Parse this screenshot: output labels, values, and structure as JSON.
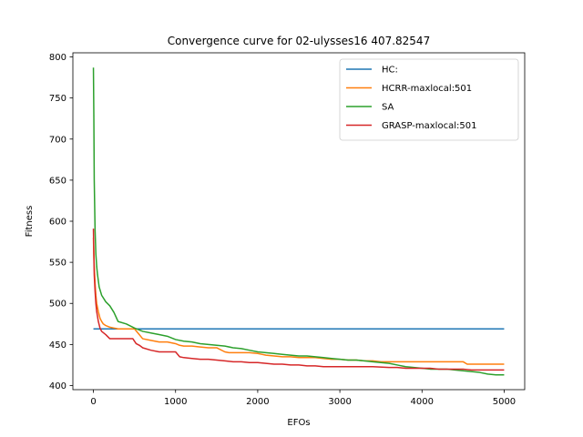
{
  "chart_data": {
    "type": "line",
    "title": "Convergence curve for 02-ulysses16 407.82547",
    "xlabel": "EFOs",
    "ylabel": "Fitness",
    "xlim": [
      -250,
      5250
    ],
    "ylim": [
      395,
      805
    ],
    "xticks": [
      0,
      1000,
      2000,
      3000,
      4000,
      5000
    ],
    "yticks": [
      400,
      450,
      500,
      550,
      600,
      650,
      700,
      750,
      800
    ],
    "grid": false,
    "legend_position": "top-right",
    "series": [
      {
        "name": "HC:",
        "color": "#1f77b4",
        "x": [
          0,
          5000
        ],
        "y": [
          469,
          469
        ]
      },
      {
        "name": "HCRR-maxlocal:501",
        "color": "#ff7f0e",
        "x": [
          0,
          5,
          10,
          20,
          30,
          40,
          60,
          80,
          100,
          120,
          150,
          200,
          250,
          300,
          400,
          500,
          550,
          600,
          700,
          800,
          900,
          1000,
          1050,
          1100,
          1200,
          1300,
          1400,
          1500,
          1600,
          1650,
          1700,
          1800,
          1900,
          2000,
          2050,
          2100,
          2200,
          2300,
          2400,
          2500,
          2600,
          2700,
          2800,
          2900,
          3000,
          3100,
          3200,
          3300,
          3400,
          3500,
          3600,
          3700,
          3800,
          3900,
          4000,
          4100,
          4200,
          4300,
          4400,
          4500,
          4550,
          4600,
          4700,
          4800,
          4900,
          5000
        ],
        "y": [
          580,
          560,
          545,
          525,
          510,
          500,
          490,
          482,
          478,
          475,
          473,
          471,
          470,
          469,
          469,
          469,
          463,
          457,
          455,
          453,
          453,
          451,
          449,
          448,
          448,
          447,
          446,
          446,
          441,
          440,
          440,
          440,
          440,
          439,
          438,
          437,
          436,
          435,
          435,
          434,
          434,
          434,
          433,
          432,
          432,
          431,
          431,
          430,
          430,
          429,
          429,
          429,
          429,
          429,
          429,
          429,
          429,
          429,
          429,
          429,
          426,
          426,
          426,
          426,
          426,
          426
        ]
      },
      {
        "name": "SA",
        "color": "#2ca02c",
        "x": [
          0,
          5,
          10,
          20,
          30,
          40,
          50,
          70,
          100,
          150,
          200,
          250,
          300,
          400,
          500,
          600,
          700,
          800,
          900,
          1000,
          1100,
          1200,
          1300,
          1400,
          1500,
          1600,
          1700,
          1800,
          1900,
          2000,
          2100,
          2200,
          2300,
          2400,
          2500,
          2600,
          2700,
          2800,
          2900,
          3000,
          3100,
          3200,
          3300,
          3400,
          3500,
          3600,
          3700,
          3800,
          3900,
          4000,
          4100,
          4200,
          4300,
          4400,
          4500,
          4600,
          4700,
          4800,
          4900,
          5000
        ],
        "y": [
          787,
          730,
          650,
          590,
          560,
          545,
          535,
          520,
          510,
          502,
          497,
          489,
          478,
          475,
          470,
          466,
          464,
          462,
          460,
          456,
          454,
          453,
          451,
          450,
          449,
          448,
          446,
          445,
          443,
          441,
          440,
          439,
          438,
          437,
          436,
          436,
          435,
          434,
          433,
          432,
          431,
          431,
          430,
          429,
          428,
          427,
          425,
          423,
          422,
          421,
          420,
          420,
          420,
          419,
          418,
          417,
          416,
          414,
          413,
          413
        ]
      },
      {
        "name": "GRASP-maxlocal:501",
        "color": "#d62728",
        "x": [
          0,
          5,
          10,
          20,
          30,
          40,
          60,
          80,
          100,
          150,
          200,
          300,
          400,
          480,
          520,
          560,
          600,
          700,
          800,
          900,
          1000,
          1050,
          1100,
          1200,
          1300,
          1400,
          1500,
          1600,
          1700,
          1800,
          1900,
          2000,
          2100,
          2200,
          2300,
          2400,
          2500,
          2600,
          2700,
          2800,
          2900,
          3000,
          3200,
          3400,
          3600,
          3700,
          3800,
          3900,
          4000,
          4100,
          4200,
          4300,
          4400,
          4500,
          4600,
          4700,
          4800,
          4900,
          5000
        ],
        "y": [
          591,
          560,
          535,
          515,
          500,
          490,
          478,
          470,
          466,
          462,
          457,
          457,
          457,
          457,
          451,
          449,
          446,
          443,
          441,
          441,
          441,
          435,
          434,
          433,
          432,
          432,
          431,
          430,
          429,
          429,
          428,
          428,
          427,
          426,
          426,
          425,
          425,
          424,
          424,
          423,
          423,
          423,
          423,
          423,
          422,
          422,
          421,
          421,
          421,
          421,
          420,
          420,
          420,
          420,
          419,
          419,
          419,
          419,
          419
        ]
      }
    ]
  }
}
